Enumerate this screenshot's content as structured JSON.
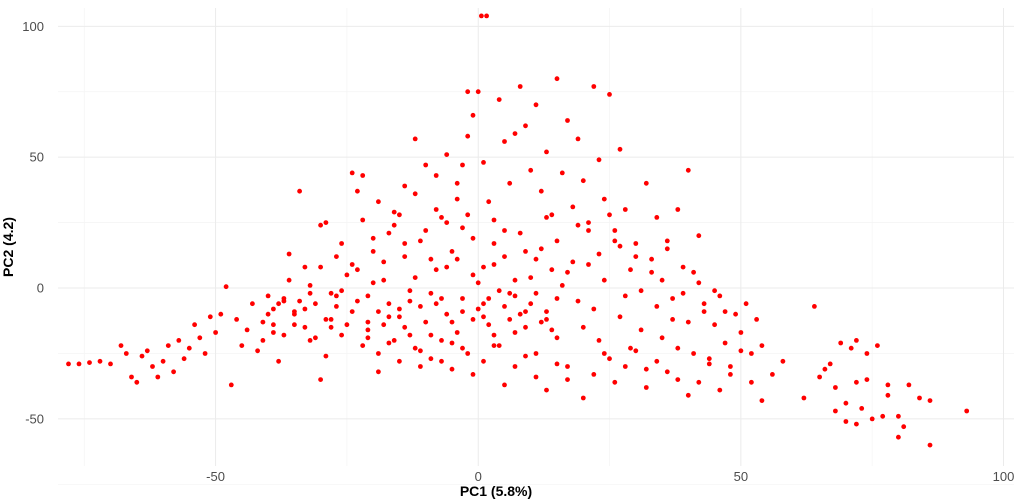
{
  "chart_data": {
    "type": "scatter",
    "xlabel": "PC1 (5.8%)",
    "ylabel": "PC2 (4.2)",
    "xlim": [
      -80,
      102
    ],
    "ylim": [
      -68,
      107
    ],
    "x_ticks": [
      -50,
      0,
      50,
      100
    ],
    "y_ticks": [
      -50,
      0,
      50,
      100
    ],
    "x_tick_labels": [
      "-50",
      "0",
      "50",
      "100"
    ],
    "y_tick_labels": [
      "-50",
      "0",
      "50",
      "100"
    ],
    "grid": true,
    "legend": "none",
    "point_color": "#ff0000",
    "points": [
      [
        0.6,
        104
      ],
      [
        1.6,
        104
      ],
      [
        -78,
        -29
      ],
      [
        -76,
        -29
      ],
      [
        -74,
        -28.5
      ],
      [
        -72,
        -28
      ],
      [
        -70,
        -29
      ],
      [
        -68,
        -22
      ],
      [
        -67,
        -25
      ],
      [
        -66,
        -34
      ],
      [
        -65,
        -36
      ],
      [
        -64,
        -26
      ],
      [
        -63,
        -24
      ],
      [
        -62,
        -30
      ],
      [
        -61,
        -34
      ],
      [
        -60,
        -28
      ],
      [
        -59,
        -22
      ],
      [
        -58,
        -32
      ],
      [
        -57,
        -20
      ],
      [
        -56,
        -27
      ],
      [
        -55,
        -23
      ],
      [
        -54,
        -14
      ],
      [
        -53,
        -19
      ],
      [
        -52,
        -25
      ],
      [
        -51,
        -11
      ],
      [
        -50,
        -17
      ],
      [
        -49,
        -10
      ],
      [
        -48,
        0.5
      ],
      [
        -47,
        -37
      ],
      [
        -46,
        -12
      ],
      [
        -45,
        -22
      ],
      [
        -44,
        -16
      ],
      [
        -43,
        -6
      ],
      [
        -42,
        -24
      ],
      [
        -41,
        -20
      ],
      [
        -40,
        -10
      ],
      [
        -39,
        -17
      ],
      [
        -38,
        -28
      ],
      [
        -37,
        -4
      ],
      [
        -36,
        13
      ],
      [
        -35,
        -14
      ],
      [
        -34,
        37
      ],
      [
        -33,
        -8
      ],
      [
        -32,
        -2
      ],
      [
        -31,
        -19
      ],
      [
        -30,
        -35
      ],
      [
        -29,
        -26
      ],
      [
        -28,
        -12
      ],
      [
        -27,
        -3
      ],
      [
        -26,
        -18
      ],
      [
        -25,
        5
      ],
      [
        -24,
        -9
      ],
      [
        -23,
        37
      ],
      [
        -22,
        -22
      ],
      [
        -21,
        -16
      ],
      [
        -20,
        2
      ],
      [
        -19,
        -25
      ],
      [
        -18,
        -14
      ],
      [
        -17,
        -11
      ],
      [
        -16,
        -20
      ],
      [
        -15,
        -8
      ],
      [
        -14,
        -15
      ],
      [
        -13,
        -5
      ],
      [
        -12,
        -23
      ],
      [
        -11,
        -30
      ],
      [
        -10,
        -13
      ],
      [
        -9,
        -18
      ],
      [
        -8,
        -6
      ],
      [
        -7,
        -28
      ],
      [
        -6,
        -10
      ],
      [
        -5,
        -21
      ],
      [
        -4,
        -17
      ],
      [
        -3,
        -4
      ],
      [
        -2,
        -25
      ],
      [
        -1,
        -12
      ],
      [
        -29,
        25
      ],
      [
        -30,
        24
      ],
      [
        -33,
        8
      ],
      [
        -27,
        12
      ],
      [
        -24,
        44
      ],
      [
        -22,
        43
      ],
      [
        -19,
        33
      ],
      [
        -17,
        21
      ],
      [
        -15,
        28
      ],
      [
        -14,
        39
      ],
      [
        -12,
        36
      ],
      [
        -11,
        18
      ],
      [
        -9,
        11
      ],
      [
        -8,
        30
      ],
      [
        -7,
        27
      ],
      [
        -6,
        51
      ],
      [
        -5,
        14
      ],
      [
        -4,
        40
      ],
      [
        -3,
        23
      ],
      [
        -2,
        58
      ],
      [
        -1,
        19
      ],
      [
        0,
        2
      ],
      [
        1,
        -6
      ],
      [
        2,
        -14
      ],
      [
        3,
        9
      ],
      [
        4,
        -22
      ],
      [
        5,
        12
      ],
      [
        6,
        -2
      ],
      [
        7,
        -17
      ],
      [
        8,
        21
      ],
      [
        9,
        -9
      ],
      [
        10,
        4
      ],
      [
        11,
        -25
      ],
      [
        12,
        15
      ],
      [
        13,
        -12
      ],
      [
        14,
        7
      ],
      [
        15,
        -19
      ],
      [
        16,
        1
      ],
      [
        17,
        -30
      ],
      [
        18,
        10
      ],
      [
        19,
        -5
      ],
      [
        20,
        -15
      ],
      [
        21,
        22
      ],
      [
        22,
        -8
      ],
      [
        23,
        -20
      ],
      [
        24,
        3
      ],
      [
        25,
        -27
      ],
      [
        26,
        18
      ],
      [
        27,
        -11
      ],
      [
        28,
        -3
      ],
      [
        29,
        -23
      ],
      [
        30,
        12
      ],
      [
        31,
        -16
      ],
      [
        32,
        -31
      ],
      [
        33,
        6
      ],
      [
        34,
        -7
      ],
      [
        35,
        -19
      ],
      [
        36,
        15
      ],
      [
        37,
        -4
      ],
      [
        38,
        -35
      ],
      [
        39,
        8
      ],
      [
        40,
        -13
      ],
      [
        41,
        -25
      ],
      [
        42,
        2
      ],
      [
        43,
        -9
      ],
      [
        44,
        -29
      ],
      [
        45,
        -14
      ],
      [
        46,
        -3
      ],
      [
        47,
        -21
      ],
      [
        48,
        -33
      ],
      [
        49,
        -10
      ],
      [
        50,
        -17
      ],
      [
        51,
        -6
      ],
      [
        52,
        -25
      ],
      [
        53,
        -12
      ],
      [
        54,
        -22
      ],
      [
        0,
        75
      ],
      [
        1,
        48
      ],
      [
        2,
        33
      ],
      [
        3,
        26
      ],
      [
        4,
        72
      ],
      [
        5,
        56
      ],
      [
        6,
        40
      ],
      [
        7,
        59
      ],
      [
        8,
        77
      ],
      [
        9,
        62
      ],
      [
        10,
        45
      ],
      [
        11,
        70
      ],
      [
        12,
        37
      ],
      [
        13,
        52
      ],
      [
        14,
        28
      ],
      [
        15,
        80
      ],
      [
        16,
        44
      ],
      [
        17,
        64
      ],
      [
        18,
        31
      ],
      [
        19,
        57
      ],
      [
        20,
        41
      ],
      [
        21,
        25
      ],
      [
        22,
        77
      ],
      [
        23,
        49
      ],
      [
        24,
        34
      ],
      [
        25,
        74
      ],
      [
        26,
        22
      ],
      [
        27,
        53
      ],
      [
        28,
        30
      ],
      [
        30,
        17
      ],
      [
        32,
        40
      ],
      [
        34,
        27
      ],
      [
        36,
        18
      ],
      [
        38,
        30
      ],
      [
        40,
        45
      ],
      [
        42,
        20
      ],
      [
        -2,
        75
      ],
      [
        -1,
        66
      ],
      [
        -3,
        47
      ],
      [
        -4,
        34
      ],
      [
        -6,
        8
      ],
      [
        -8,
        43
      ],
      [
        -10,
        47
      ],
      [
        -12,
        57
      ],
      [
        -14,
        17
      ],
      [
        -16,
        29
      ],
      [
        -18,
        10
      ],
      [
        -20,
        19
      ],
      [
        -21,
        -3
      ],
      [
        -23,
        7
      ],
      [
        -26,
        -1
      ],
      [
        -28,
        -15
      ],
      [
        -32,
        -20
      ],
      [
        -35,
        -10
      ],
      [
        -37,
        -18
      ],
      [
        -39,
        -8
      ],
      [
        -41,
        -13
      ],
      [
        -3,
        -9
      ],
      [
        -5,
        -13
      ],
      [
        -7,
        -4
      ],
      [
        -9,
        -2
      ],
      [
        -11,
        -7
      ],
      [
        -13,
        -1
      ],
      [
        -15,
        -11
      ],
      [
        -17,
        -6
      ],
      [
        -19,
        -9
      ],
      [
        -21,
        -13
      ],
      [
        -23,
        -5
      ],
      [
        -25,
        -14
      ],
      [
        -27,
        -7
      ],
      [
        -29,
        -12
      ],
      [
        -31,
        -6
      ],
      [
        -33,
        -15
      ],
      [
        -35,
        -9
      ],
      [
        -37,
        -5
      ],
      [
        -39,
        -14
      ],
      [
        0,
        -8
      ],
      [
        1,
        -11
      ],
      [
        2,
        -4
      ],
      [
        3,
        -18
      ],
      [
        4,
        -1
      ],
      [
        5,
        -7
      ],
      [
        6,
        -12
      ],
      [
        7,
        -3
      ],
      [
        8,
        -10
      ],
      [
        9,
        -15
      ],
      [
        10,
        -6
      ],
      [
        11,
        -2
      ],
      [
        12,
        -13
      ],
      [
        13,
        -9
      ],
      [
        14,
        -16
      ],
      [
        15,
        -4
      ],
      [
        -1,
        5
      ],
      [
        1,
        8
      ],
      [
        3,
        17
      ],
      [
        5,
        22
      ],
      [
        7,
        3
      ],
      [
        9,
        14
      ],
      [
        11,
        11
      ],
      [
        13,
        27
      ],
      [
        15,
        18
      ],
      [
        17,
        6
      ],
      [
        19,
        24
      ],
      [
        21,
        9
      ],
      [
        23,
        13
      ],
      [
        25,
        28
      ],
      [
        27,
        16
      ],
      [
        29,
        7
      ],
      [
        31,
        -1
      ],
      [
        33,
        11
      ],
      [
        35,
        3
      ],
      [
        37,
        -12
      ],
      [
        39,
        -2
      ],
      [
        41,
        6
      ],
      [
        43,
        -6
      ],
      [
        45,
        -1
      ],
      [
        47,
        -9
      ],
      [
        -2,
        28
      ],
      [
        -4,
        11
      ],
      [
        -6,
        25
      ],
      [
        -8,
        7
      ],
      [
        -10,
        22
      ],
      [
        -12,
        4
      ],
      [
        -14,
        12
      ],
      [
        -16,
        24
      ],
      [
        -18,
        3
      ],
      [
        -20,
        14
      ],
      [
        -22,
        26
      ],
      [
        -24,
        9
      ],
      [
        -26,
        17
      ],
      [
        -28,
        -2
      ],
      [
        -30,
        8
      ],
      [
        -32,
        1
      ],
      [
        -34,
        -5
      ],
      [
        -36,
        3
      ],
      [
        -38,
        -6
      ],
      [
        -40,
        -3
      ],
      [
        22,
        -33
      ],
      [
        20,
        -42
      ],
      [
        24,
        -25
      ],
      [
        26,
        -36
      ],
      [
        28,
        -30
      ],
      [
        30,
        -24
      ],
      [
        32,
        -38
      ],
      [
        34,
        -28
      ],
      [
        36,
        -32
      ],
      [
        38,
        -23
      ],
      [
        40,
        -41
      ],
      [
        42,
        -36
      ],
      [
        44,
        -27
      ],
      [
        46,
        -39
      ],
      [
        48,
        -30
      ],
      [
        50,
        -24
      ],
      [
        52,
        -36
      ],
      [
        54,
        -43
      ],
      [
        56,
        -33
      ],
      [
        58,
        -28
      ],
      [
        62,
        -42
      ],
      [
        64,
        -7
      ],
      [
        65,
        -34
      ],
      [
        67,
        -29
      ],
      [
        68,
        -47
      ],
      [
        69,
        -21
      ],
      [
        70,
        -51
      ],
      [
        71,
        -23
      ],
      [
        72,
        -36
      ],
      [
        73,
        -46
      ],
      [
        74,
        -25
      ],
      [
        75,
        -50
      ],
      [
        76,
        -22
      ],
      [
        77,
        -49
      ],
      [
        78,
        -37
      ],
      [
        80,
        -49
      ],
      [
        81,
        -53
      ],
      [
        82,
        -37
      ],
      [
        84,
        -42
      ],
      [
        86,
        -60
      ],
      [
        86,
        -43
      ],
      [
        93,
        -47
      ],
      [
        80,
        -57
      ],
      [
        78,
        -41
      ],
      [
        72,
        -52
      ],
      [
        68,
        -38
      ],
      [
        66,
        -31
      ],
      [
        70,
        -44
      ],
      [
        74,
        -35
      ],
      [
        72,
        -20
      ],
      [
        -1,
        -33
      ],
      [
        1,
        -28
      ],
      [
        3,
        -22
      ],
      [
        5,
        -37
      ],
      [
        7,
        -30
      ],
      [
        9,
        -26
      ],
      [
        11,
        -34
      ],
      [
        13,
        -39
      ],
      [
        15,
        -29
      ],
      [
        17,
        -35
      ],
      [
        -3,
        -23
      ],
      [
        -5,
        -31
      ],
      [
        -7,
        -20
      ],
      [
        -9,
        -27
      ],
      [
        -11,
        -24
      ],
      [
        -13,
        -18
      ],
      [
        -15,
        -28
      ],
      [
        -17,
        -21
      ],
      [
        -19,
        -32
      ],
      [
        -21,
        -19
      ]
    ]
  }
}
